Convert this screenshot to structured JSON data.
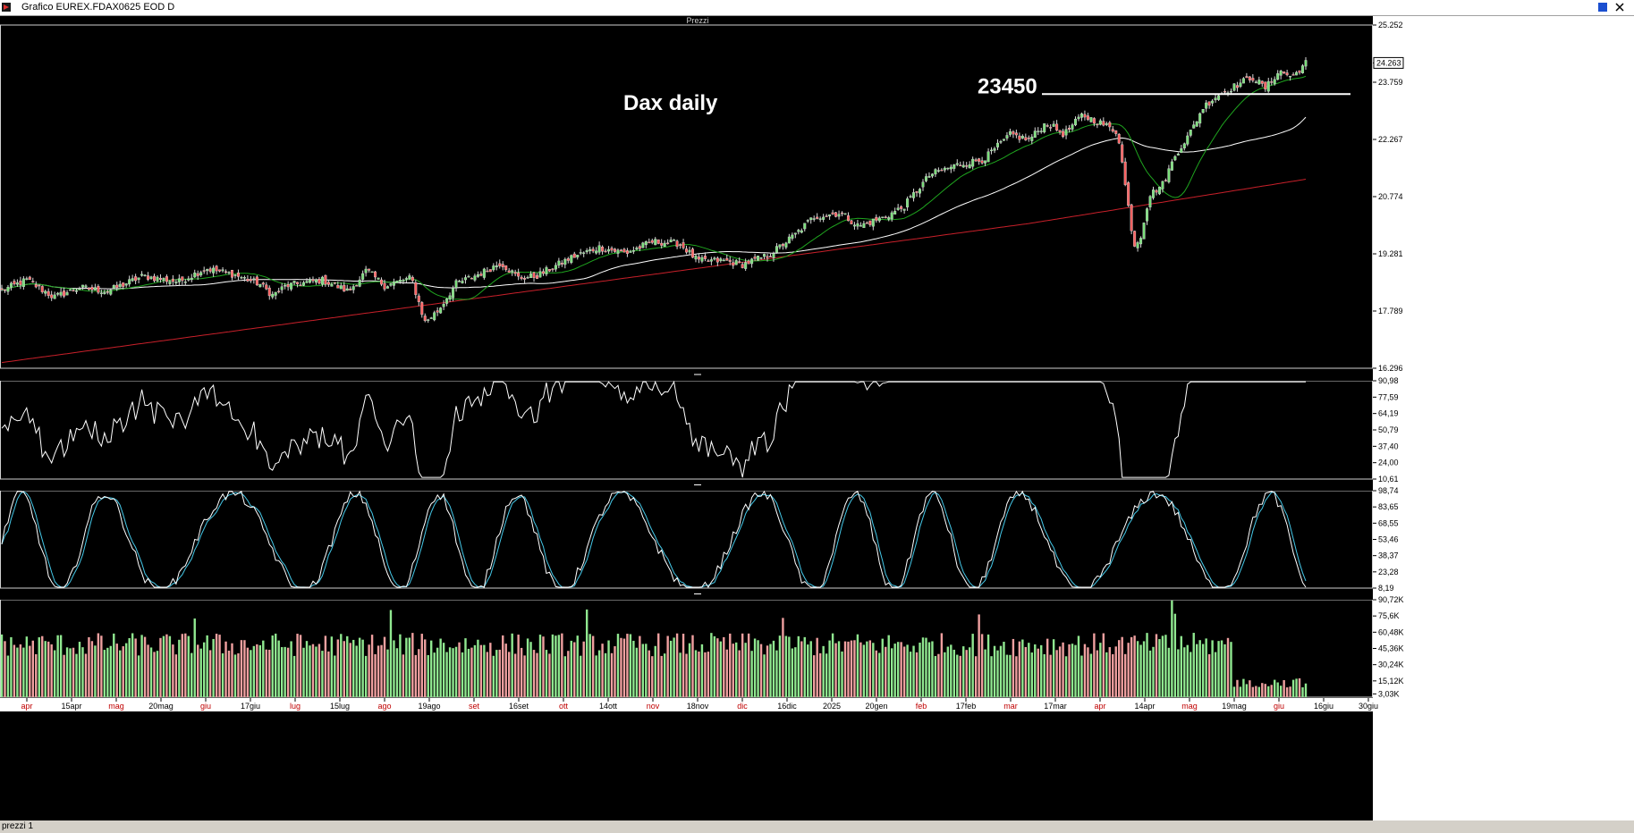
{
  "window": {
    "title": "Grafico EUREX.FDAX0625 EOD D",
    "status_text": "prezzi 1",
    "colors": {
      "background": "#000000",
      "panel_border": "#ffffff",
      "axis_bg": "#ffffff"
    }
  },
  "chart_data": [
    {
      "type": "candlestick",
      "panel": "Prezzi",
      "title": "Dax daily",
      "annotation": {
        "label": "23450",
        "y": 23450,
        "line_from": "mar",
        "line_to": "giu"
      },
      "yticks": [
        "25.252",
        "24.263",
        "23.759",
        "22.267",
        "20.774",
        "19.281",
        "17.789",
        "16.296"
      ],
      "ylim": [
        16296,
        25252
      ],
      "last_value": "24.263",
      "close_keypoints": [
        [
          0,
          18300
        ],
        [
          30,
          18600
        ],
        [
          60,
          18150
        ],
        [
          90,
          18400
        ],
        [
          120,
          18300
        ],
        [
          160,
          18700
        ],
        [
          200,
          18550
        ],
        [
          230,
          18900
        ],
        [
          260,
          18750
        ],
        [
          290,
          18500
        ],
        [
          305,
          18200
        ],
        [
          320,
          18450
        ],
        [
          360,
          18600
        ],
        [
          390,
          18300
        ],
        [
          410,
          18850
        ],
        [
          430,
          18450
        ],
        [
          460,
          18650
        ],
        [
          475,
          17500
        ],
        [
          490,
          17800
        ],
        [
          510,
          18500
        ],
        [
          540,
          18800
        ],
        [
          560,
          19050
        ],
        [
          580,
          18650
        ],
        [
          600,
          18700
        ],
        [
          640,
          19200
        ],
        [
          670,
          19450
        ],
        [
          700,
          19300
        ],
        [
          730,
          19600
        ],
        [
          760,
          19550
        ],
        [
          780,
          19100
        ],
        [
          810,
          19100
        ],
        [
          830,
          19000
        ],
        [
          860,
          19250
        ],
        [
          890,
          19800
        ],
        [
          910,
          20250
        ],
        [
          940,
          20350
        ],
        [
          960,
          20000
        ],
        [
          990,
          20250
        ],
        [
          1010,
          20500
        ],
        [
          1040,
          21350
        ],
        [
          1070,
          21600
        ],
        [
          1100,
          21750
        ],
        [
          1130,
          22400
        ],
        [
          1150,
          22250
        ],
        [
          1170,
          22700
        ],
        [
          1190,
          22400
        ],
        [
          1210,
          22900
        ],
        [
          1230,
          22700
        ],
        [
          1250,
          22450
        ],
        [
          1258,
          21100
        ],
        [
          1268,
          19500
        ],
        [
          1275,
          19700
        ],
        [
          1285,
          20800
        ],
        [
          1300,
          21100
        ],
        [
          1315,
          21900
        ],
        [
          1330,
          22400
        ],
        [
          1345,
          23100
        ],
        [
          1360,
          23400
        ],
        [
          1380,
          23650
        ],
        [
          1400,
          23900
        ],
        [
          1415,
          23600
        ],
        [
          1430,
          24050
        ],
        [
          1445,
          23900
        ],
        [
          1460,
          24263
        ]
      ],
      "moving_averages": [
        {
          "name": "MA short",
          "color": "#1fa51f"
        },
        {
          "name": "MA medium",
          "color": "#ffffff"
        },
        {
          "name": "MA long",
          "color": "#c8202a"
        }
      ]
    },
    {
      "type": "line",
      "panel": "oscillator",
      "yticks": [
        "90,98",
        "77,59",
        "64,19",
        "50,79",
        "37,40",
        "24,00",
        "10,61"
      ],
      "ylim": [
        10.61,
        90.98
      ]
    },
    {
      "type": "line",
      "panel": "stochastic",
      "yticks": [
        "98,74",
        "83,65",
        "68,55",
        "53,46",
        "38,37",
        "23,28",
        "8,19"
      ],
      "ylim": [
        8.19,
        98.74
      ],
      "series_colors": [
        "#ffffff",
        "#44c8e8"
      ]
    },
    {
      "type": "bar",
      "panel": "volume",
      "yticks": [
        "90,72K",
        "75,6K",
        "60,48K",
        "45,36K",
        "30,24K",
        "15,12K",
        "3,03K"
      ],
      "ylim": [
        0,
        90720
      ],
      "colors": {
        "up": "#90e890",
        "down": "#f0a0a0"
      }
    }
  ],
  "xaxis": {
    "labels": [
      {
        "text": "apr",
        "month": true
      },
      {
        "text": "15apr",
        "month": false
      },
      {
        "text": "mag",
        "month": true
      },
      {
        "text": "20mag",
        "month": false
      },
      {
        "text": "giu",
        "month": true
      },
      {
        "text": "17giu",
        "month": false
      },
      {
        "text": "lug",
        "month": true
      },
      {
        "text": "15lug",
        "month": false
      },
      {
        "text": "ago",
        "month": true
      },
      {
        "text": "19ago",
        "month": false
      },
      {
        "text": "set",
        "month": true
      },
      {
        "text": "16set",
        "month": false
      },
      {
        "text": "ott",
        "month": true
      },
      {
        "text": "14ott",
        "month": false
      },
      {
        "text": "nov",
        "month": true
      },
      {
        "text": "18nov",
        "month": false
      },
      {
        "text": "dic",
        "month": true
      },
      {
        "text": "16dic",
        "month": false
      },
      {
        "text": "2025",
        "month": false
      },
      {
        "text": "20gen",
        "month": false
      },
      {
        "text": "feb",
        "month": true
      },
      {
        "text": "17feb",
        "month": false
      },
      {
        "text": "mar",
        "month": true
      },
      {
        "text": "17mar",
        "month": false
      },
      {
        "text": "apr",
        "month": true
      },
      {
        "text": "14apr",
        "month": false
      },
      {
        "text": "mag",
        "month": true
      },
      {
        "text": "19mag",
        "month": false
      },
      {
        "text": "giu",
        "month": true
      },
      {
        "text": "16giu",
        "month": false
      },
      {
        "text": "30giu",
        "month": false
      }
    ]
  }
}
